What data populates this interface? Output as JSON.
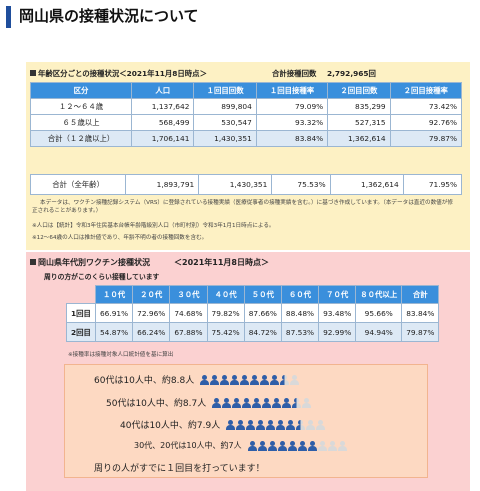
{
  "page": {
    "title": "岡山県の接種状況について"
  },
  "section1": {
    "heading": "年齢区分ごとの接種状況＜2021年11月8日時点＞",
    "total_label": "合計接種回数",
    "total_value": "2,792,965回",
    "columns": [
      "区分",
      "人口",
      "１回目回数",
      "１回目接種率",
      "２回目回数",
      "２回目接種率"
    ],
    "rows": [
      [
        "１２～６４歳",
        "1,137,642",
        "899,804",
        "79.09%",
        "835,299",
        "73.42%"
      ],
      [
        "６５歳以上",
        "568,499",
        "530,547",
        "93.32%",
        "527,315",
        "92.76%"
      ],
      [
        "合計（１２歳以上）",
        "1,706,141",
        "1,430,351",
        "83.84%",
        "1,362,614",
        "79.87%"
      ]
    ],
    "total_row": [
      "合計（全年齢）",
      "1,893,791",
      "1,430,351",
      "75.53%",
      "1,362,614",
      "71.95%"
    ],
    "notes": [
      "本データは、ワクチン接種記録システム（VRS）に登録されている接種実績（医療従事者の接種実績を含む。）に基づき作成しています。（本データは直近の数値が修",
      "正されることがあります。）",
      "※人口は【統計】令和3年住民基本台帳年齢階級別人口（市町村別）令和3年1月1日時点による。",
      "※12～64歳の人口は推計値であり、年齢不明の者の接種回数を含む。"
    ]
  },
  "section2": {
    "heading": "岡山県年代別ワクチン接種状況　　　＜2021年11月8日時点＞",
    "subheading": "周りの方がこのくらい接種しています",
    "columns": [
      "１０代",
      "２０代",
      "３０代",
      "４０代",
      "５０代",
      "６０代",
      "７０代",
      "８０代以上",
      "合計"
    ],
    "rows": [
      {
        "label": "1回目",
        "values": [
          "66.91%",
          "72.96%",
          "74.68%",
          "79.82%",
          "87.66%",
          "88.48%",
          "93.48%",
          "95.66%",
          "83.84%"
        ]
      },
      {
        "label": "2回目",
        "values": [
          "54.87%",
          "66.24%",
          "67.88%",
          "75.42%",
          "84.72%",
          "87.53%",
          "92.99%",
          "94.94%",
          "79.87%"
        ]
      }
    ],
    "note": "※接種率は接種対象人口統計値を基に算出",
    "people_rows": [
      {
        "label": "60代は10人中、約8.8人",
        "filled": 8.8
      },
      {
        "label": "50代は10人中、約8.7人",
        "filled": 8.7
      },
      {
        "label": "40代は10人中、約7.9人",
        "filled": 7.9
      },
      {
        "label": "30代、20代は10人中、約7人",
        "filled": 7
      }
    ],
    "footer": "周りの人がすでに１回目を打っています！"
  },
  "colors": {
    "accent_blue": "#3a8fdc",
    "title_bar": "#1f4e9c",
    "panel_yellow": "#fdf1c4",
    "panel_pink": "#fbd1d1",
    "icon_filled": "#2f5ea8",
    "icon_empty": "#d9d9d9"
  }
}
